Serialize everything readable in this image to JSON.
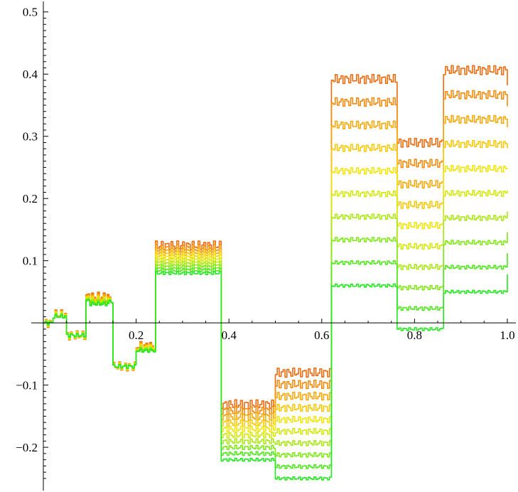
{
  "chart_data": {
    "type": "line",
    "title": "",
    "xlabel": "",
    "ylabel": "",
    "xlim": [
      0,
      1.0
    ],
    "ylim": [
      -0.265,
      0.51
    ],
    "grid": false,
    "legend": "none",
    "x_ticks": [
      {
        "value": 0.2,
        "label": "0.2"
      },
      {
        "value": 0.4,
        "label": "0.4"
      },
      {
        "value": 0.6,
        "label": "0.6"
      },
      {
        "value": 0.8,
        "label": "0.8"
      },
      {
        "value": 1.0,
        "label": "1.0"
      }
    ],
    "y_ticks": [
      {
        "value": -0.2,
        "label": "−0.2"
      },
      {
        "value": -0.1,
        "label": "−0.1"
      },
      {
        "value": 0.1,
        "label": "0.1"
      },
      {
        "value": 0.2,
        "label": "0.2"
      },
      {
        "value": 0.3,
        "label": "0.3"
      },
      {
        "value": 0.4,
        "label": "0.4"
      },
      {
        "value": 0.5,
        "label": "0.5"
      }
    ],
    "series_colors_from_green_to_orange": [
      "#22e81e",
      "#4ee81a",
      "#7fe815",
      "#a9e810",
      "#d2e80b",
      "#f2e406",
      "#f8c806",
      "#f8a806",
      "#f58a08",
      "#ee6a0c"
    ],
    "series_amplitudes": [
      0.0,
      0.09,
      0.18,
      0.27,
      0.36,
      0.45,
      0.54,
      0.63,
      0.72,
      0.81
    ],
    "base_function": {
      "description_values": "piecewise step levels (x breakpoints, y level)",
      "x": [
        0.0,
        0.02,
        0.05,
        0.09,
        0.1,
        0.14,
        0.15,
        0.2,
        0.24,
        0.38,
        0.5,
        0.62,
        0.76,
        0.86,
        1.0
      ],
      "y": [
        0.0,
        0.01,
        -0.02,
        0.035,
        0.03,
        0.035,
        -0.07,
        -0.045,
        0.08,
        -0.22,
        -0.25,
        0.06,
        -0.01,
        0.05,
        0.08
      ]
    },
    "top_function": {
      "x": [
        0.0,
        0.02,
        0.05,
        0.09,
        0.1,
        0.14,
        0.15,
        0.2,
        0.24,
        0.38,
        0.5,
        0.62,
        0.76,
        0.86,
        1.0
      ],
      "y": [
        0.0,
        0.015,
        -0.02,
        0.045,
        0.045,
        0.04,
        -0.07,
        -0.035,
        0.135,
        -0.11,
        -0.04,
        0.47,
        0.36,
        0.49,
        0.46
      ]
    }
  }
}
